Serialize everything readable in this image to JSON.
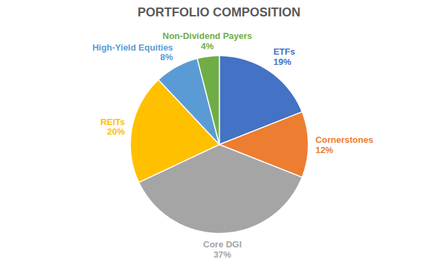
{
  "chart_data": {
    "type": "pie",
    "title": "PORTFOLIO COMPOSITION",
    "categories": [
      "ETFs",
      "Cornerstones",
      "Core DGI",
      "REITs",
      "High-Yield Equities",
      "Non-Dividend Payers"
    ],
    "values": [
      19,
      12,
      37,
      20,
      8,
      4
    ],
    "value_labels": [
      "19%",
      "12%",
      "37%",
      "20%",
      "8%",
      "4%"
    ],
    "colors": [
      "#4472c4",
      "#ed7d31",
      "#a5a5a5",
      "#ffc000",
      "#5b9bd5",
      "#70ad47"
    ],
    "data_labels": true
  }
}
